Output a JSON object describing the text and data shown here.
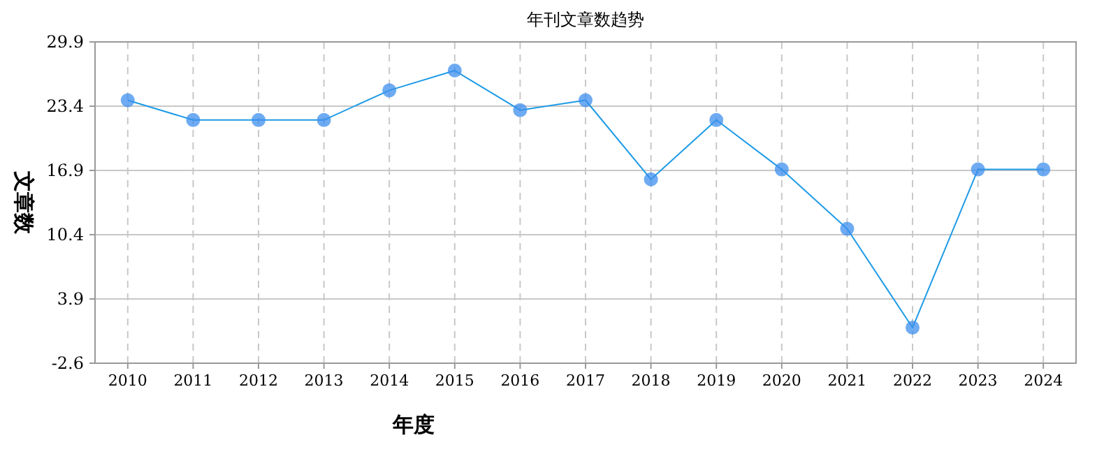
{
  "chart_data": {
    "type": "line",
    "title": "年刊文章数趋势",
    "xlabel": "年度",
    "ylabel": "文章数",
    "categories": [
      "2010",
      "2011",
      "2012",
      "2013",
      "2014",
      "2015",
      "2016",
      "2017",
      "2018",
      "2019",
      "2020",
      "2021",
      "2022",
      "2023",
      "2024"
    ],
    "series": [
      {
        "color": "#1e9be6",
        "values": [
          24,
          22,
          22,
          22,
          25,
          27,
          23,
          24,
          16,
          22,
          17,
          11,
          1,
          17,
          17
        ]
      }
    ],
    "ylim": [
      -2.6,
      29.9
    ],
    "yticks": [
      -2.6,
      3.9,
      10.4,
      16.9,
      23.4,
      29.9
    ],
    "grid": true,
    "marker": "circle",
    "line_style": "solid"
  }
}
